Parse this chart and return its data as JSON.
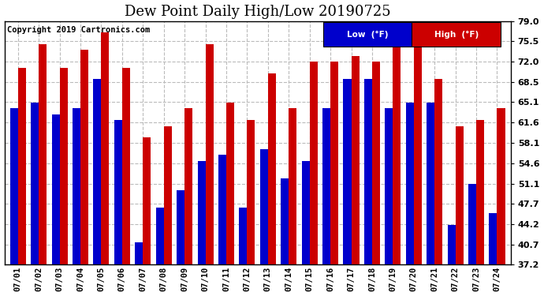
{
  "title": "Dew Point Daily High/Low 20190725",
  "copyright": "Copyright 2019 Cartronics.com",
  "dates": [
    "07/01",
    "07/02",
    "07/03",
    "07/04",
    "07/05",
    "07/06",
    "07/07",
    "07/08",
    "07/09",
    "07/10",
    "07/11",
    "07/12",
    "07/13",
    "07/14",
    "07/15",
    "07/16",
    "07/17",
    "07/18",
    "07/19",
    "07/20",
    "07/21",
    "07/22",
    "07/23",
    "07/24"
  ],
  "low_values": [
    64,
    65,
    63,
    64,
    69,
    62,
    41,
    47,
    50,
    55,
    56,
    47,
    57,
    52,
    55,
    64,
    69,
    69,
    64,
    65,
    65,
    44,
    51,
    46
  ],
  "high_values": [
    71,
    75,
    71,
    74,
    77,
    71,
    59,
    61,
    64,
    75,
    65,
    62,
    70,
    64,
    72,
    72,
    73,
    72,
    79,
    79,
    69,
    61,
    62,
    64
  ],
  "ylim_low": 37.2,
  "ylim_high": 79.0,
  "yticks": [
    37.2,
    40.7,
    44.2,
    47.7,
    51.1,
    54.6,
    58.1,
    61.6,
    65.1,
    68.5,
    72.0,
    75.5,
    79.0
  ],
  "low_color": "#0000cc",
  "high_color": "#cc0000",
  "bg_color": "#ffffff",
  "grid_color": "#bbbbbb",
  "title_fontsize": 13,
  "copyright_fontsize": 7.5,
  "legend_low_label": "Low  (°F)",
  "legend_high_label": "High  (°F)"
}
